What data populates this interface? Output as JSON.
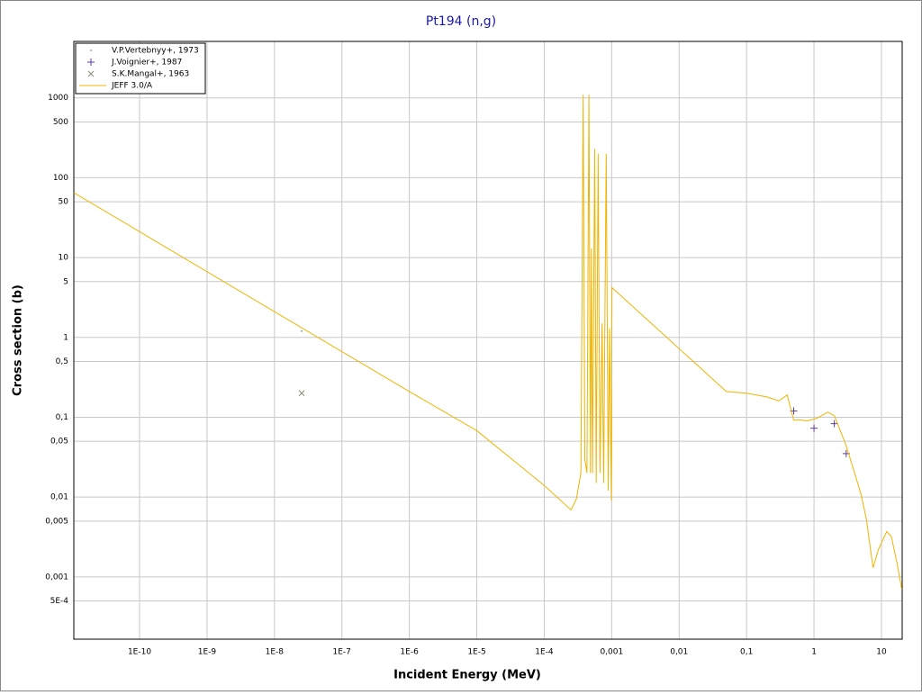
{
  "chart_data": {
    "type": "line",
    "title": "Pt194 (n,g)",
    "xlabel": "Incident Energy (MeV)",
    "ylabel": "Cross section (b)",
    "xscale": "log",
    "yscale": "log",
    "grid": true,
    "legend": "upper left",
    "xlim": [
      1.06e-11,
      20.3
    ],
    "ylim": [
      0.000166,
      5100
    ],
    "xticks": [
      {
        "value": 1e-10,
        "label": "1E-10"
      },
      {
        "value": 1e-09,
        "label": "1E-9"
      },
      {
        "value": 1e-08,
        "label": "1E-8"
      },
      {
        "value": 1e-07,
        "label": "1E-7"
      },
      {
        "value": 1e-06,
        "label": "1E-6"
      },
      {
        "value": 1e-05,
        "label": "1E-5"
      },
      {
        "value": 0.0001,
        "label": "1E-4"
      },
      {
        "value": 0.001,
        "label": "0,001"
      },
      {
        "value": 0.01,
        "label": "0,01"
      },
      {
        "value": 0.1,
        "label": "0,1"
      },
      1,
      10
    ],
    "yticks": [
      1000,
      500,
      100,
      50,
      10,
      5,
      1,
      {
        "value": 0.5,
        "label": "0,5"
      },
      {
        "value": 0.1,
        "label": "0,1"
      },
      {
        "value": 0.05,
        "label": "0,05"
      },
      {
        "value": 0.01,
        "label": "0,01"
      },
      {
        "value": 0.005,
        "label": "0,005"
      },
      {
        "value": 0.001,
        "label": "0,001"
      },
      {
        "value": 0.0005,
        "label": "5E-4"
      }
    ],
    "series": [
      {
        "name": "V.P.Vertebnyy+, 1973",
        "color": "#777777",
        "marker": "dot",
        "x": [
          2.53e-08
        ],
        "values": [
          1.2
        ]
      },
      {
        "name": "J.Voignier+, 1987",
        "color": "#5a3fa0",
        "marker": "plus",
        "x": [
          0.5,
          1,
          2,
          3
        ],
        "values": [
          0.12,
          0.073,
          0.083,
          0.035
        ]
      },
      {
        "name": "S.K.Mangal+, 1963",
        "color": "#8a8a70",
        "marker": "cross",
        "x": [
          2.53e-08
        ],
        "values": [
          0.2
        ]
      },
      {
        "name": "JEFF 3.0/A",
        "color": "#f0b400",
        "x": [
          1.06e-11,
          1e-08,
          1e-06,
          1e-05,
          0.0001,
          0.00025,
          0.0003,
          0.00035,
          0.000378,
          0.0004,
          0.00043,
          0.00046,
          0.000485,
          0.0005,
          0.00052,
          0.00056,
          0.00059,
          0.00063,
          0.00067,
          0.00072,
          0.00076,
          0.00083,
          0.00089,
          0.00093,
          0.00099,
          0.00101,
          0.05,
          0.1,
          0.2,
          0.3,
          0.4,
          0.5,
          0.6,
          0.8,
          1.1,
          1.6,
          2,
          3,
          4,
          5,
          6,
          7.5,
          9,
          12,
          14,
          17,
          20
        ],
        "values": [
          65,
          2.1,
          0.21,
          0.068,
          0.014,
          0.0069,
          0.0095,
          0.02,
          1100,
          0.03,
          0.02,
          1100,
          0.02,
          13,
          0.02,
          230,
          0.015,
          200,
          0.02,
          1.5,
          0.015,
          200,
          0.012,
          1.3,
          0.009,
          4.2,
          0.21,
          0.2,
          0.18,
          0.16,
          0.19,
          0.092,
          0.093,
          0.09,
          0.097,
          0.116,
          0.105,
          0.044,
          0.02,
          0.0107,
          0.0052,
          0.0013,
          0.0022,
          0.0037,
          0.0032,
          0.0015,
          0.0007
        ]
      }
    ]
  }
}
